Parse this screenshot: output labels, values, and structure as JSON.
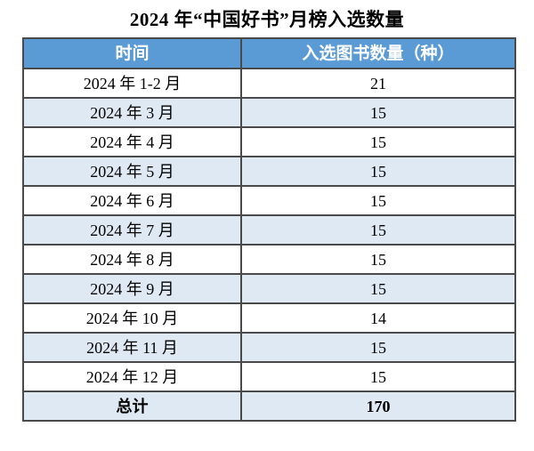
{
  "title": "2024 年“中国好书”月榜入选数量",
  "colors": {
    "header_bg": "#5B9BD5",
    "header_text": "#FFFFFF",
    "band_bg": "#DEE9F4",
    "border_color": "#4A4A4A",
    "text_color": "#000000",
    "page_bg": "#FFFFFF"
  },
  "table": {
    "headers": [
      "时间",
      "入选图书数量（种）"
    ],
    "rows": [
      {
        "time": "2024 年 1-2 月",
        "count": "21"
      },
      {
        "time": "2024 年 3 月",
        "count": "15"
      },
      {
        "time": "2024 年 4 月",
        "count": "15"
      },
      {
        "time": "2024 年 5 月",
        "count": "15"
      },
      {
        "time": "2024 年 6 月",
        "count": "15"
      },
      {
        "time": "2024 年 7 月",
        "count": "15"
      },
      {
        "time": "2024 年 8 月",
        "count": "15"
      },
      {
        "time": "2024 年 9 月",
        "count": "15"
      },
      {
        "time": "2024 年 10 月",
        "count": "14"
      },
      {
        "time": "2024 年 11 月",
        "count": "15"
      },
      {
        "time": "2024 年 12 月",
        "count": "15"
      }
    ],
    "total": {
      "label": "总计",
      "value": "170"
    }
  },
  "chart_data": {
    "type": "table",
    "title": "2024 年“中国好书”月榜入选数量",
    "columns": [
      "时间",
      "入选图书数量（种）"
    ],
    "categories": [
      "2024 年 1-2 月",
      "2024 年 3 月",
      "2024 年 4 月",
      "2024 年 5 月",
      "2024 年 6 月",
      "2024 年 7 月",
      "2024 年 8 月",
      "2024 年 9 月",
      "2024 年 10 月",
      "2024 年 11 月",
      "2024 年 12 月"
    ],
    "values": [
      21,
      15,
      15,
      15,
      15,
      15,
      15,
      15,
      14,
      15,
      15
    ],
    "total_label": "总计",
    "total_value": 170,
    "layout": {
      "banded_rows": true,
      "header_fill": "#5B9BD5",
      "band_fill": "#DEE9F4"
    }
  }
}
